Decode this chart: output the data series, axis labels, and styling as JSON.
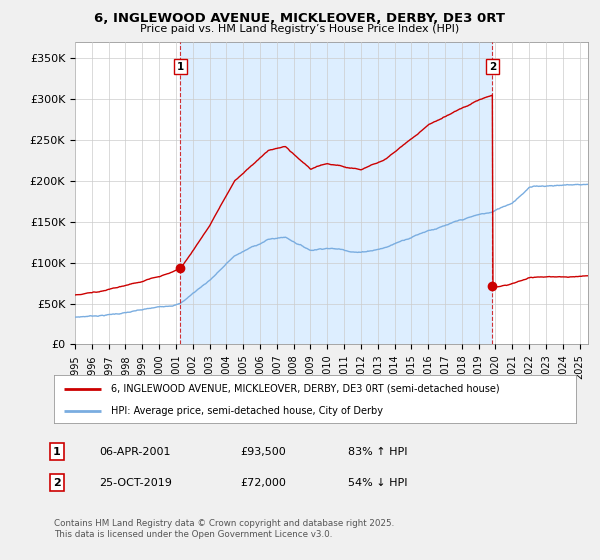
{
  "title_line1": "6, INGLEWOOD AVENUE, MICKLEOVER, DERBY, DE3 0RT",
  "title_line2": "Price paid vs. HM Land Registry’s House Price Index (HPI)",
  "ylabel_ticks": [
    "£0",
    "£50K",
    "£100K",
    "£150K",
    "£200K",
    "£250K",
    "£300K",
    "£350K"
  ],
  "ytick_vals": [
    0,
    50000,
    100000,
    150000,
    200000,
    250000,
    300000,
    350000
  ],
  "ylim": [
    0,
    370000
  ],
  "xlim_start": 1995.0,
  "xlim_end": 2025.5,
  "red_color": "#cc0000",
  "blue_color": "#7aade0",
  "shade_color": "#ddeeff",
  "marker1_x": 2001.27,
  "marker1_y": 93500,
  "marker2_x": 2019.82,
  "marker2_y": 72000,
  "legend_label_red": "6, INGLEWOOD AVENUE, MICKLEOVER, DERBY, DE3 0RT (semi-detached house)",
  "legend_label_blue": "HPI: Average price, semi-detached house, City of Derby",
  "table_row1": [
    "1",
    "06-APR-2001",
    "£93,500",
    "83% ↑ HPI"
  ],
  "table_row2": [
    "2",
    "25-OCT-2019",
    "£72,000",
    "54% ↓ HPI"
  ],
  "footnote": "Contains HM Land Registry data © Crown copyright and database right 2025.\nThis data is licensed under the Open Government Licence v3.0.",
  "background_color": "#f0f0f0",
  "plot_bg_color": "#ffffff",
  "grid_color": "#cccccc"
}
